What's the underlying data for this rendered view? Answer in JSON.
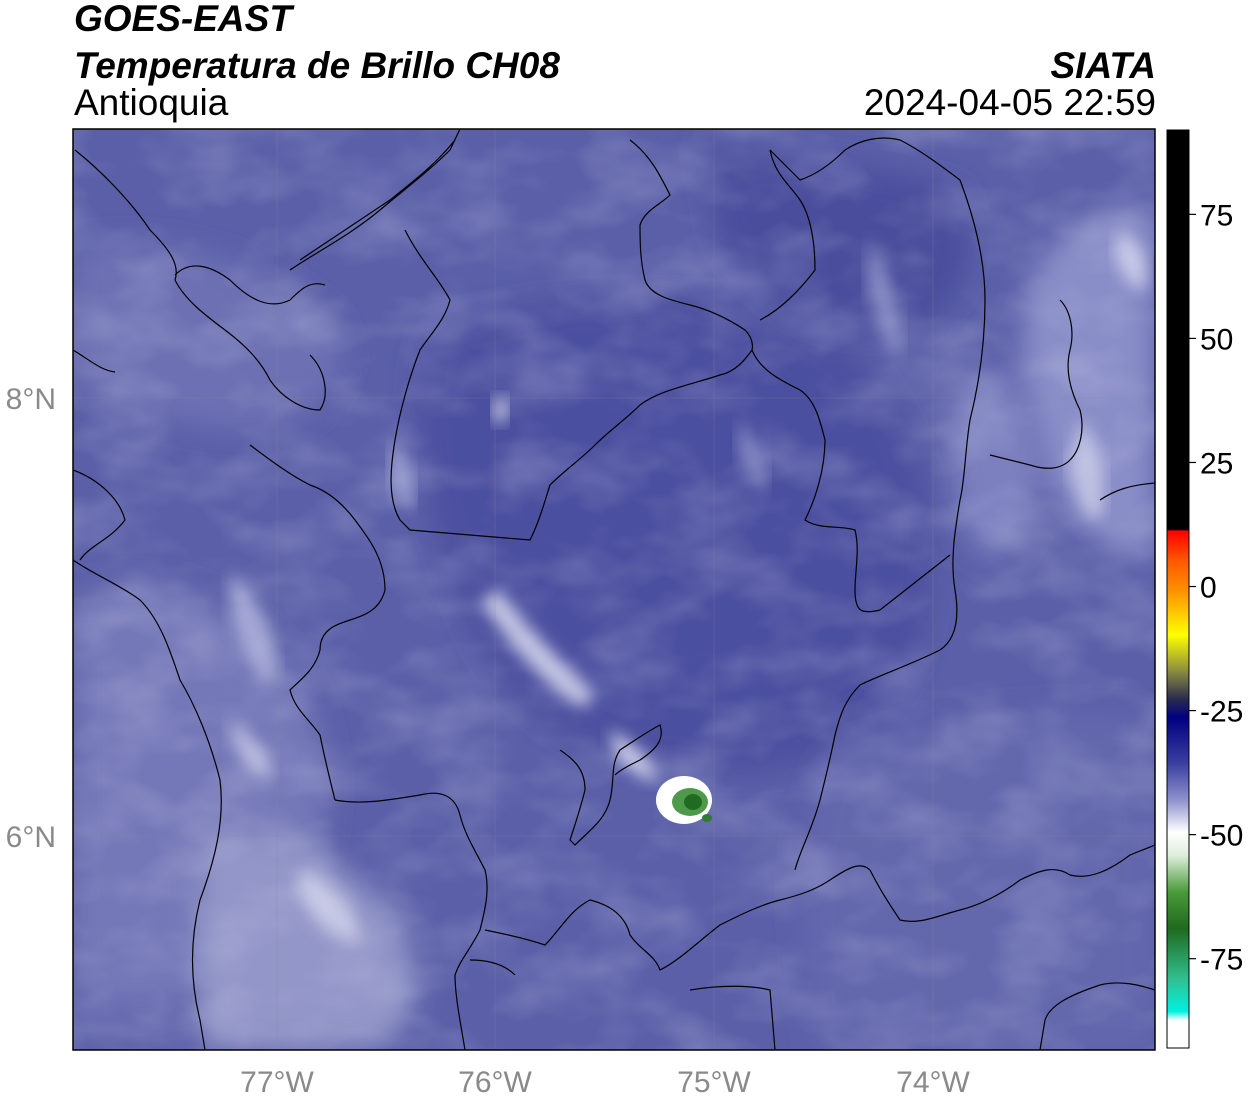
{
  "header": {
    "satellite": "GOES-EAST",
    "product": "Temperatura de Brillo CH08",
    "organization": "SIATA",
    "region": "Antioquia",
    "timestamp": "2024-04-05 22:59"
  },
  "map": {
    "x_ticks": [
      "77°W",
      "76°W",
      "75°W",
      "74°W"
    ],
    "y_ticks": [
      "8°N",
      "6°N"
    ],
    "lon_range": [
      -77.94,
      -73.0
    ],
    "lat_range": [
      5.06,
      9.27
    ],
    "base_color": "#5a5fa8",
    "storm_cell": {
      "lon": -75.1,
      "lat": 6.16,
      "min_temp": -65
    }
  },
  "colorbar": {
    "ticks": [
      "75",
      "50",
      "25",
      "0",
      "-25",
      "-50",
      "-75"
    ],
    "tick_values": [
      75,
      50,
      25,
      0,
      -25,
      -50,
      -75
    ],
    "range": [
      -93,
      92
    ],
    "colors": {
      "hot": "#000000",
      "warm_red": "#ff0000",
      "orange": "#ff8c00",
      "yellow": "#ffff00",
      "navy": "#000080",
      "blue_purple": "#5a5fa8",
      "white": "#ffffff",
      "green": "#2e7d32",
      "teal": "#00e5cc"
    }
  }
}
